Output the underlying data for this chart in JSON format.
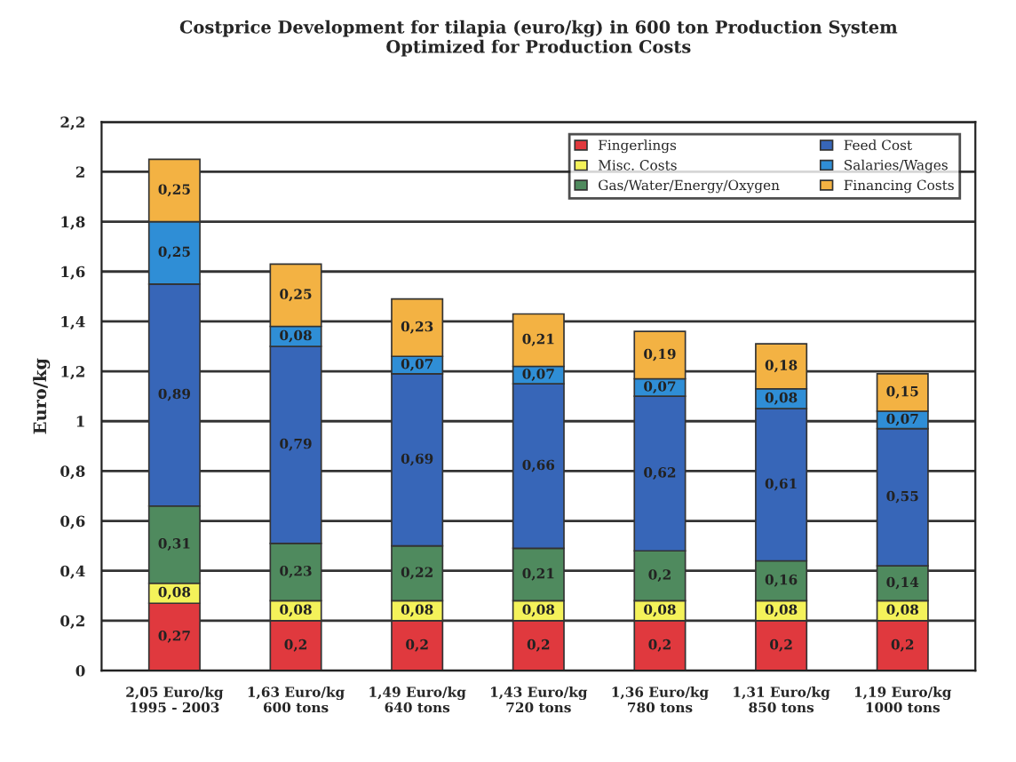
{
  "chart_data": {
    "type": "bar",
    "stacked": true,
    "title": "Costprice Development for tilapia (euro/kg) in 600 ton Production System\nOptimized for Production Costs",
    "ylabel": "Euro/kg",
    "categories": [
      "2,05 Euro/kg\n1995 - 2003",
      "1,63 Euro/kg\n600 tons",
      "1,49 Euro/kg\n640 tons",
      "1,43 Euro/kg\n720 tons",
      "1,36 Euro/kg\n780 tons",
      "1,31 Euro/kg\n850 tons",
      "1,19 Euro/kg\n1000 tons"
    ],
    "series": [
      {
        "name": "Fingerlings",
        "color": "#e0393e",
        "values": [
          0.27,
          0.2,
          0.2,
          0.2,
          0.2,
          0.2,
          0.2
        ],
        "value_labels": [
          "0,27",
          "0,2",
          "0,2",
          "0,2",
          "0,2",
          "0,2",
          "0,2"
        ]
      },
      {
        "name": "Misc. Costs",
        "color": "#f4f25a",
        "values": [
          0.08,
          0.08,
          0.08,
          0.08,
          0.08,
          0.08,
          0.08
        ],
        "value_labels": [
          "0,08",
          "0,08",
          "0,08",
          "0,08",
          "0,08",
          "0,08",
          "0,08"
        ]
      },
      {
        "name": "Gas/Water/Energy/Oxygen",
        "color": "#4f8a5e",
        "values": [
          0.31,
          0.23,
          0.22,
          0.21,
          0.2,
          0.16,
          0.14
        ],
        "value_labels": [
          "0,31",
          "0,23",
          "0,22",
          "0,21",
          "0,2",
          "0,16",
          "0,14"
        ]
      },
      {
        "name": "Feed Cost",
        "color": "#3766b8",
        "values": [
          0.89,
          0.79,
          0.69,
          0.66,
          0.62,
          0.61,
          0.55
        ],
        "value_labels": [
          "0,89",
          "0,79",
          "0,69",
          "0,66",
          "0,62",
          "0,61",
          "0,55"
        ]
      },
      {
        "name": "Salaries/Wages",
        "color": "#2f8ed6",
        "values": [
          0.25,
          0.08,
          0.07,
          0.07,
          0.07,
          0.08,
          0.07
        ],
        "value_labels": [
          "0,25",
          "0,08",
          "0,07",
          "0,07",
          "0,07",
          "0,08",
          "0,07"
        ]
      },
      {
        "name": "Financing Costs",
        "color": "#f3b243",
        "values": [
          0.25,
          0.25,
          0.23,
          0.21,
          0.19,
          0.18,
          0.15
        ],
        "value_labels": [
          "0,25",
          "0,25",
          "0,23",
          "0,21",
          "0,19",
          "0,18",
          "0,15"
        ]
      }
    ],
    "ylim": [
      0,
      2.2
    ],
    "yticks": [
      0,
      {
        "value": 0.2,
        "label": "0,2"
      },
      {
        "value": 0.4,
        "label": "0,4"
      },
      {
        "value": 0.6,
        "label": "0,6"
      },
      {
        "value": 0.8,
        "label": "0,8"
      },
      1,
      {
        "value": 1.2,
        "label": "1,2"
      },
      {
        "value": 1.4,
        "label": "1,4"
      },
      {
        "value": 1.6,
        "label": "1,6"
      },
      {
        "value": 1.8,
        "label": "1,8"
      },
      2,
      {
        "value": 2.2,
        "label": "2,2"
      }
    ],
    "grid": "y",
    "legend": "top right"
  }
}
